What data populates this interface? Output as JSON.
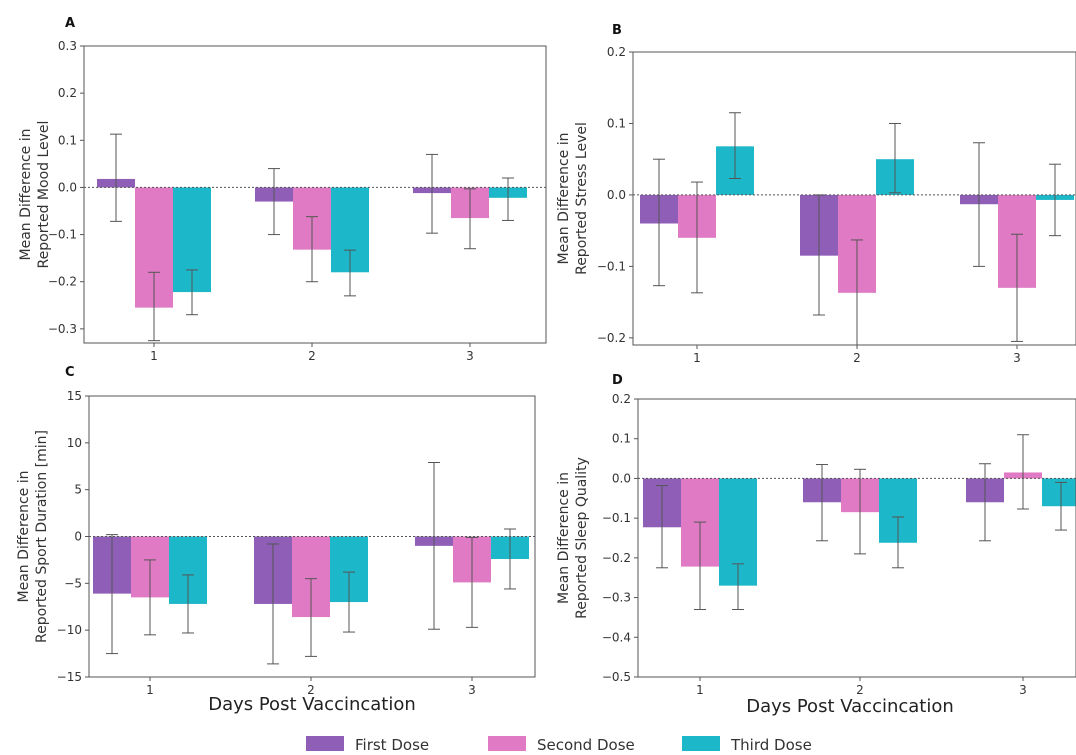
{
  "chart_data": [
    {
      "panel_label": "A",
      "type": "bar",
      "categories": [
        "1",
        "2",
        "3"
      ],
      "ylabel": [
        "Mean Difference in",
        "Reported Mood Level"
      ],
      "xlabel": "",
      "ylim": [
        -0.33,
        0.3
      ],
      "yticks": [
        -0.3,
        -0.2,
        -0.1,
        0.0,
        0.1,
        0.2,
        0.3
      ],
      "ytick_labels": [
        "−0.3",
        "−0.2",
        "−0.1",
        "0.0",
        "0.1",
        "0.2",
        "0.3"
      ],
      "series": [
        {
          "values": [
            0.018,
            -0.03,
            -0.012
          ],
          "err_low": [
            -0.072,
            -0.1,
            -0.097
          ],
          "err_high": [
            0.113,
            0.04,
            0.07
          ]
        },
        {
          "values": [
            -0.255,
            -0.132,
            -0.065
          ],
          "err_low": [
            -0.325,
            -0.2,
            -0.13
          ],
          "err_high": [
            -0.18,
            -0.062,
            -0.003
          ]
        },
        {
          "values": [
            -0.222,
            -0.18,
            -0.022
          ],
          "err_low": [
            -0.27,
            -0.23,
            -0.07
          ],
          "err_high": [
            -0.175,
            -0.133,
            0.02
          ]
        }
      ]
    },
    {
      "panel_label": "B",
      "type": "bar",
      "categories": [
        "1",
        "2",
        "3"
      ],
      "ylabel": [
        "Mean Difference in",
        "Reported Stress Level"
      ],
      "xlabel": "",
      "ylim": [
        -0.21,
        0.2
      ],
      "yticks": [
        -0.2,
        -0.1,
        0.0,
        0.1,
        0.2
      ],
      "ytick_labels": [
        "−0.2",
        "−0.1",
        "0.0",
        "0.1",
        "0.2"
      ],
      "series": [
        {
          "values": [
            -0.04,
            -0.085,
            -0.013
          ],
          "err_low": [
            -0.127,
            -0.168,
            -0.1
          ],
          "err_high": [
            0.05,
            0.0,
            0.073
          ]
        },
        {
          "values": [
            -0.06,
            -0.137,
            -0.13
          ],
          "err_low": [
            -0.137,
            -0.21,
            -0.205
          ],
          "err_high": [
            0.018,
            -0.063,
            -0.055
          ]
        },
        {
          "values": [
            0.068,
            0.05,
            -0.007
          ],
          "err_low": [
            0.023,
            0.003,
            -0.057
          ],
          "err_high": [
            0.115,
            0.1,
            0.043
          ]
        }
      ]
    },
    {
      "panel_label": "C",
      "type": "bar",
      "categories": [
        "1",
        "2",
        "3"
      ],
      "ylabel": [
        "Mean Difference in",
        "Reported Sport Duration [min]"
      ],
      "xlabel": "Days Post Vaccincation",
      "ylim": [
        -15,
        15
      ],
      "yticks": [
        -15,
        -10,
        -5,
        0,
        5,
        10,
        15
      ],
      "ytick_labels": [
        "−15",
        "−10",
        "−5",
        "0",
        "5",
        "10",
        "15"
      ],
      "series": [
        {
          "values": [
            -6.1,
            -7.2,
            -1.0
          ],
          "err_low": [
            -12.5,
            -13.6,
            -9.9
          ],
          "err_high": [
            0.2,
            -0.8,
            7.9
          ]
        },
        {
          "values": [
            -6.5,
            -8.6,
            -4.9
          ],
          "err_low": [
            -10.5,
            -12.8,
            -9.7
          ],
          "err_high": [
            -2.5,
            -4.5,
            -0.1
          ]
        },
        {
          "values": [
            -7.2,
            -7.0,
            -2.4
          ],
          "err_low": [
            -10.3,
            -10.2,
            -5.6
          ],
          "err_high": [
            -4.1,
            -3.8,
            0.8
          ]
        }
      ]
    },
    {
      "panel_label": "D",
      "type": "bar",
      "categories": [
        "1",
        "2",
        "3"
      ],
      "ylabel": [
        "Mean Difference in",
        "Reported Sleep Quality"
      ],
      "xlabel": "Days Post Vaccincation",
      "ylim": [
        -0.5,
        0.2
      ],
      "yticks": [
        -0.5,
        -0.4,
        -0.3,
        -0.2,
        -0.1,
        0.0,
        0.1,
        0.2
      ],
      "ytick_labels": [
        "−0.5",
        "−0.4",
        "−0.3",
        "−0.2",
        "−0.1",
        "0.0",
        "0.1",
        "0.2"
      ],
      "series": [
        {
          "values": [
            -0.123,
            -0.06,
            -0.06
          ],
          "err_low": [
            -0.225,
            -0.157,
            -0.157
          ],
          "err_high": [
            -0.018,
            0.035,
            0.037
          ]
        },
        {
          "values": [
            -0.222,
            -0.085,
            0.015
          ],
          "err_low": [
            -0.33,
            -0.19,
            -0.077
          ],
          "err_high": [
            -0.11,
            0.023,
            0.11
          ]
        },
        {
          "values": [
            -0.27,
            -0.162,
            -0.07
          ],
          "err_low": [
            -0.33,
            -0.225,
            -0.13
          ],
          "err_high": [
            -0.215,
            -0.097,
            -0.01
          ]
        }
      ]
    }
  ],
  "legend": {
    "position": "bottom-center",
    "items": [
      {
        "label": "First Dose",
        "color": "#8f5fb8"
      },
      {
        "label": "Second Dose",
        "color": "#e07ac4"
      },
      {
        "label": "Third Dose",
        "color": "#1cb7c8"
      }
    ]
  },
  "colors": {
    "axis": "#555555",
    "baseline": "#555555",
    "errorbar": "#555555"
  }
}
